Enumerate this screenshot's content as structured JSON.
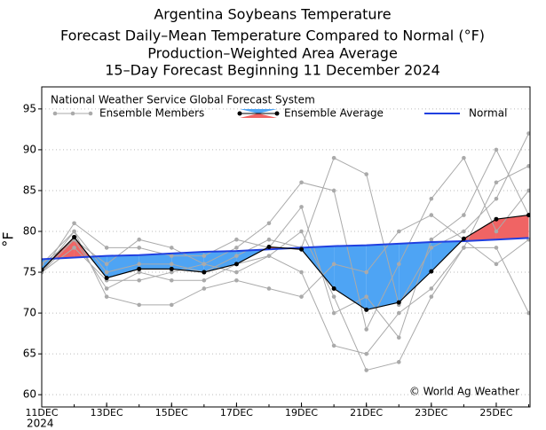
{
  "chart_data": {
    "type": "line",
    "title": "Argentina Soybeans Temperature",
    "subtitles": [
      "Forecast Daily–Mean Temperature Compared to Normal (°F)",
      "Production–Weighted Area Average",
      "15–Day Forecast Beginning 11 December 2024"
    ],
    "y_label": "°F",
    "legend_title": "National Weather Service Global Forecast System",
    "annotation": "© World Ag Weather",
    "year_label": "2024",
    "x": [
      11,
      12,
      13,
      14,
      15,
      16,
      17,
      18,
      19,
      20,
      21,
      22,
      23,
      24,
      25,
      26
    ],
    "xlim": [
      11,
      26.04
    ],
    "xticks": [
      {
        "value": 11,
        "label": "11DEC"
      },
      {
        "value": 13,
        "label": "13DEC"
      },
      {
        "value": 15,
        "label": "15DEC"
      },
      {
        "value": 17,
        "label": "17DEC"
      },
      {
        "value": 19,
        "label": "19DEC"
      },
      {
        "value": 21,
        "label": "21DEC"
      },
      {
        "value": 23,
        "label": "23DEC"
      },
      {
        "value": 25,
        "label": "25DEC"
      }
    ],
    "ylim": [
      58.5,
      97.7
    ],
    "yticks": [
      60,
      65,
      70,
      75,
      80,
      85,
      90,
      95
    ],
    "grid": true,
    "ensemble": {
      "name": "Ensemble Members",
      "color": "#aaaaaa",
      "members": [
        [
          75,
          80,
          75,
          76,
          76,
          75,
          77,
          79,
          78,
          89,
          87,
          71,
          78,
          80,
          84,
          92
        ],
        [
          75,
          79,
          73,
          75,
          74,
          74,
          76,
          77,
          80,
          72,
          63,
          64,
          72,
          78,
          86,
          88
        ],
        [
          76,
          79,
          76,
          79,
          78,
          76,
          78,
          81,
          86,
          85,
          68,
          76,
          84,
          89,
          80,
          85
        ],
        [
          75,
          78,
          74,
          74,
          75,
          76,
          75,
          77,
          75,
          66,
          65,
          70,
          73,
          78,
          78,
          70
        ],
        [
          76,
          80,
          72,
          71,
          71,
          73,
          74,
          73,
          72,
          76,
          75,
          80,
          82,
          79,
          76,
          79
        ],
        [
          75,
          81,
          78,
          78,
          77,
          77,
          79,
          78,
          83,
          70,
          72,
          67,
          79,
          82,
          90,
          82
        ]
      ]
    },
    "series": [
      {
        "name": "Ensemble Average",
        "color": "#000000",
        "values": [
          75.3,
          79.3,
          74.3,
          75.4,
          75.4,
          75.0,
          76.0,
          78.1,
          77.8,
          73.0,
          70.4,
          71.3,
          75.1,
          79.1,
          81.5,
          82.0
        ]
      },
      {
        "name": "Normal",
        "color": "#2040e0",
        "values": [
          76.6,
          76.8,
          77.0,
          77.1,
          77.3,
          77.5,
          77.6,
          77.8,
          78.0,
          78.2,
          78.3,
          78.5,
          78.7,
          78.8,
          79.0,
          79.2
        ]
      }
    ],
    "above_color": "#f06464",
    "below_color": "#4ea4f4"
  }
}
